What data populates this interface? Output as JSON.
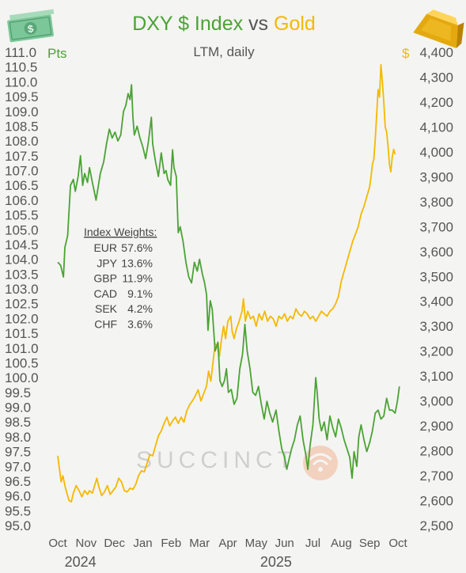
{
  "colors": {
    "dxy": "#4aa334",
    "gold": "#f5b800",
    "title_dark": "#555555",
    "tick_text": "#555555",
    "background": "#f4f4f2"
  },
  "title": {
    "part1": "DXY $ Index",
    "part2": " vs ",
    "part3": "Gold"
  },
  "subtitle": "LTM, daily",
  "left_unit": "Pts",
  "right_unit": "$",
  "watermark": "SUCCINCT",
  "icons": {
    "left": "dollar-bill-icon",
    "right": "gold-bar-icon",
    "watermark": "succinct-logo-icon"
  },
  "weights": {
    "title": "Index Weights:",
    "rows": [
      {
        "currency": "EUR",
        "weight": "57.6%"
      },
      {
        "currency": "JPY",
        "weight": "13.6%"
      },
      {
        "currency": "GBP",
        "weight": "11.9%"
      },
      {
        "currency": "CAD",
        "weight": "9.1%"
      },
      {
        "currency": "SEK",
        "weight": "4.2%"
      },
      {
        "currency": "CHF",
        "weight": "3.6%"
      }
    ]
  },
  "chart_data": {
    "type": "line",
    "x_labels": [
      "Oct",
      "Nov",
      "Dec",
      "Jan",
      "Feb",
      "Mar",
      "Apr",
      "May",
      "Jun",
      "Jul",
      "Aug",
      "Sep",
      "Oct"
    ],
    "year_labels": [
      {
        "label": "2024",
        "month_index": 0.8
      },
      {
        "label": "2025",
        "month_index": 7.7
      }
    ],
    "left_axis": {
      "ylim": [
        95.0,
        111.0
      ],
      "ticks": [
        "111.0",
        "110.5",
        "110.0",
        "109.5",
        "109.0",
        "108.5",
        "108.0",
        "107.5",
        "107.0",
        "106.5",
        "106.0",
        "105.5",
        "105.0",
        "104.5",
        "104.0",
        "103.5",
        "103.0",
        "102.5",
        "102.0",
        "101.5",
        "101.0",
        "100.5",
        "100.0",
        "99.5",
        "99.0",
        "98.5",
        "98.0",
        "97.5",
        "97.0",
        "96.5",
        "96.0",
        "95.5",
        "95.0"
      ]
    },
    "right_axis": {
      "ylim": [
        2500,
        4400
      ],
      "ticks": [
        "4,400",
        "4,300",
        "4,200",
        "4,100",
        "4,000",
        "3,900",
        "3,800",
        "3,700",
        "3,600",
        "3,500",
        "3,400",
        "3,300",
        "3,200",
        "3,100",
        "3,000",
        "2,900",
        "2,800",
        "2,700",
        "2,600",
        "2,500"
      ]
    },
    "series": [
      {
        "name": "DXY $ Index",
        "axis": "left",
        "points": [
          [
            0.0,
            103.9
          ],
          [
            0.1,
            103.8
          ],
          [
            0.2,
            103.4
          ],
          [
            0.25,
            104.4
          ],
          [
            0.35,
            104.8
          ],
          [
            0.45,
            106.5
          ],
          [
            0.55,
            106.7
          ],
          [
            0.62,
            106.3
          ],
          [
            0.72,
            106.8
          ],
          [
            0.8,
            107.5
          ],
          [
            0.88,
            106.5
          ],
          [
            0.95,
            106.9
          ],
          [
            1.05,
            106.6
          ],
          [
            1.12,
            107.1
          ],
          [
            1.2,
            106.7
          ],
          [
            1.35,
            106.0
          ],
          [
            1.5,
            106.9
          ],
          [
            1.62,
            107.3
          ],
          [
            1.72,
            107.9
          ],
          [
            1.82,
            108.4
          ],
          [
            1.92,
            108.1
          ],
          [
            2.02,
            108.3
          ],
          [
            2.12,
            108.0
          ],
          [
            2.22,
            108.2
          ],
          [
            2.32,
            109.0
          ],
          [
            2.4,
            109.2
          ],
          [
            2.48,
            109.6
          ],
          [
            2.55,
            109.4
          ],
          [
            2.6,
            109.9
          ],
          [
            2.65,
            108.8
          ],
          [
            2.7,
            108.2
          ],
          [
            2.8,
            108.5
          ],
          [
            2.9,
            108.1
          ],
          [
            3.0,
            107.8
          ],
          [
            3.1,
            107.4
          ],
          [
            3.2,
            108.0
          ],
          [
            3.3,
            108.8
          ],
          [
            3.35,
            107.9
          ],
          [
            3.45,
            107.3
          ],
          [
            3.55,
            106.8
          ],
          [
            3.65,
            107.6
          ],
          [
            3.75,
            106.9
          ],
          [
            3.82,
            107.0
          ],
          [
            3.88,
            106.7
          ],
          [
            3.98,
            106.5
          ],
          [
            4.05,
            107.7
          ],
          [
            4.1,
            107.1
          ],
          [
            4.18,
            106.8
          ],
          [
            4.25,
            104.9
          ],
          [
            4.32,
            105.1
          ],
          [
            4.42,
            104.6
          ],
          [
            4.52,
            103.9
          ],
          [
            4.62,
            103.4
          ],
          [
            4.72,
            103.2
          ],
          [
            4.82,
            103.9
          ],
          [
            4.92,
            103.6
          ],
          [
            5.0,
            104.0
          ],
          [
            5.1,
            103.5
          ],
          [
            5.18,
            103.2
          ],
          [
            5.25,
            102.8
          ],
          [
            5.3,
            101.6
          ],
          [
            5.38,
            102.6
          ],
          [
            5.45,
            102.3
          ],
          [
            5.55,
            100.9
          ],
          [
            5.65,
            101.2
          ],
          [
            5.72,
            99.9
          ],
          [
            5.8,
            99.7
          ],
          [
            5.88,
            99.9
          ],
          [
            5.95,
            100.3
          ],
          [
            6.02,
            99.5
          ],
          [
            6.12,
            99.6
          ],
          [
            6.22,
            99.1
          ],
          [
            6.32,
            99.3
          ],
          [
            6.42,
            100.3
          ],
          [
            6.52,
            100.8
          ],
          [
            6.6,
            101.8
          ],
          [
            6.68,
            100.9
          ],
          [
            6.78,
            100.3
          ],
          [
            6.88,
            99.5
          ],
          [
            6.98,
            99.4
          ],
          [
            7.08,
            99.7
          ],
          [
            7.18,
            99.1
          ],
          [
            7.28,
            98.6
          ],
          [
            7.38,
            99.2
          ],
          [
            7.48,
            98.8
          ],
          [
            7.58,
            98.5
          ],
          [
            7.7,
            98.9
          ],
          [
            7.8,
            98.2
          ],
          [
            7.9,
            97.6
          ],
          [
            8.0,
            97.3
          ],
          [
            8.08,
            96.9
          ],
          [
            8.15,
            97.2
          ],
          [
            8.25,
            97.6
          ],
          [
            8.35,
            97.9
          ],
          [
            8.45,
            98.4
          ],
          [
            8.55,
            98.7
          ],
          [
            8.65,
            97.9
          ],
          [
            8.75,
            97.4
          ],
          [
            8.82,
            96.9
          ],
          [
            8.9,
            97.7
          ],
          [
            9.0,
            98.4
          ],
          [
            9.05,
            99.2
          ],
          [
            9.1,
            100.0
          ],
          [
            9.15,
            99.5
          ],
          [
            9.22,
            98.6
          ],
          [
            9.3,
            98.2
          ],
          [
            9.4,
            98.5
          ],
          [
            9.5,
            97.9
          ],
          [
            9.6,
            98.7
          ],
          [
            9.7,
            98.3
          ],
          [
            9.8,
            98.0
          ],
          [
            9.9,
            98.6
          ],
          [
            10.0,
            98.3
          ],
          [
            10.1,
            97.9
          ],
          [
            10.2,
            97.6
          ],
          [
            10.3,
            97.3
          ],
          [
            10.38,
            96.6
          ],
          [
            10.45,
            97.5
          ],
          [
            10.55,
            97.0
          ],
          [
            10.62,
            98.0
          ],
          [
            10.7,
            98.4
          ],
          [
            10.8,
            97.9
          ],
          [
            10.9,
            97.5
          ],
          [
            11.0,
            97.8
          ],
          [
            11.1,
            98.2
          ],
          [
            11.2,
            98.8
          ],
          [
            11.3,
            98.9
          ],
          [
            11.4,
            98.6
          ],
          [
            11.5,
            98.7
          ],
          [
            11.6,
            99.3
          ],
          [
            11.7,
            98.9
          ],
          [
            11.8,
            98.9
          ],
          [
            11.9,
            98.8
          ],
          [
            11.98,
            99.2
          ],
          [
            12.05,
            99.7
          ]
        ]
      },
      {
        "name": "Gold",
        "axis": "right",
        "points": [
          [
            0.0,
            2780
          ],
          [
            0.05,
            2735
          ],
          [
            0.12,
            2675
          ],
          [
            0.18,
            2700
          ],
          [
            0.25,
            2660
          ],
          [
            0.32,
            2630
          ],
          [
            0.4,
            2600
          ],
          [
            0.48,
            2595
          ],
          [
            0.55,
            2630
          ],
          [
            0.65,
            2660
          ],
          [
            0.75,
            2640
          ],
          [
            0.85,
            2615
          ],
          [
            0.95,
            2640
          ],
          [
            1.05,
            2625
          ],
          [
            1.12,
            2640
          ],
          [
            1.22,
            2630
          ],
          [
            1.3,
            2660
          ],
          [
            1.38,
            2690
          ],
          [
            1.45,
            2655
          ],
          [
            1.55,
            2620
          ],
          [
            1.65,
            2635
          ],
          [
            1.75,
            2660
          ],
          [
            1.85,
            2625
          ],
          [
            1.95,
            2640
          ],
          [
            2.05,
            2655
          ],
          [
            2.15,
            2690
          ],
          [
            2.25,
            2675
          ],
          [
            2.35,
            2640
          ],
          [
            2.45,
            2635
          ],
          [
            2.55,
            2650
          ],
          [
            2.65,
            2645
          ],
          [
            2.75,
            2665
          ],
          [
            2.85,
            2700
          ],
          [
            2.95,
            2720
          ],
          [
            3.05,
            2715
          ],
          [
            3.15,
            2750
          ],
          [
            3.25,
            2785
          ],
          [
            3.35,
            2780
          ],
          [
            3.45,
            2820
          ],
          [
            3.55,
            2860
          ],
          [
            3.65,
            2880
          ],
          [
            3.75,
            2910
          ],
          [
            3.85,
            2935
          ],
          [
            3.95,
            2900
          ],
          [
            4.05,
            2920
          ],
          [
            4.15,
            2935
          ],
          [
            4.25,
            2910
          ],
          [
            4.35,
            2935
          ],
          [
            4.45,
            2915
          ],
          [
            4.55,
            2960
          ],
          [
            4.65,
            2985
          ],
          [
            4.75,
            3000
          ],
          [
            4.85,
            3020
          ],
          [
            4.95,
            3045
          ],
          [
            5.05,
            3000
          ],
          [
            5.15,
            3030
          ],
          [
            5.25,
            3060
          ],
          [
            5.32,
            3120
          ],
          [
            5.4,
            3080
          ],
          [
            5.48,
            3160
          ],
          [
            5.55,
            3230
          ],
          [
            5.62,
            3220
          ],
          [
            5.7,
            3180
          ],
          [
            5.78,
            3250
          ],
          [
            5.85,
            3300
          ],
          [
            5.92,
            3250
          ],
          [
            6.0,
            3320
          ],
          [
            6.1,
            3340
          ],
          [
            6.15,
            3280
          ],
          [
            6.22,
            3250
          ],
          [
            6.3,
            3290
          ],
          [
            6.4,
            3320
          ],
          [
            6.5,
            3360
          ],
          [
            6.55,
            3410
          ],
          [
            6.62,
            3320
          ],
          [
            6.7,
            3360
          ],
          [
            6.8,
            3330
          ],
          [
            6.9,
            3340
          ],
          [
            7.0,
            3300
          ],
          [
            7.1,
            3350
          ],
          [
            7.2,
            3325
          ],
          [
            7.3,
            3360
          ],
          [
            7.4,
            3320
          ],
          [
            7.5,
            3340
          ],
          [
            7.6,
            3330
          ],
          [
            7.7,
            3300
          ],
          [
            7.8,
            3340
          ],
          [
            7.9,
            3330
          ],
          [
            8.0,
            3350
          ],
          [
            8.1,
            3320
          ],
          [
            8.2,
            3340
          ],
          [
            8.3,
            3330
          ],
          [
            8.4,
            3370
          ],
          [
            8.5,
            3350
          ],
          [
            8.6,
            3340
          ],
          [
            8.7,
            3360
          ],
          [
            8.8,
            3350
          ],
          [
            8.9,
            3330
          ],
          [
            9.0,
            3340
          ],
          [
            9.1,
            3320
          ],
          [
            9.2,
            3340
          ],
          [
            9.3,
            3360
          ],
          [
            9.4,
            3350
          ],
          [
            9.5,
            3340
          ],
          [
            9.6,
            3360
          ],
          [
            9.7,
            3370
          ],
          [
            9.8,
            3390
          ],
          [
            9.9,
            3420
          ],
          [
            10.0,
            3480
          ],
          [
            10.1,
            3520
          ],
          [
            10.2,
            3560
          ],
          [
            10.3,
            3600
          ],
          [
            10.4,
            3640
          ],
          [
            10.5,
            3670
          ],
          [
            10.6,
            3700
          ],
          [
            10.7,
            3750
          ],
          [
            10.8,
            3780
          ],
          [
            10.9,
            3820
          ],
          [
            11.0,
            3860
          ],
          [
            11.05,
            3900
          ],
          [
            11.1,
            3950
          ],
          [
            11.15,
            3970
          ],
          [
            11.2,
            4050
          ],
          [
            11.25,
            4150
          ],
          [
            11.3,
            4250
          ],
          [
            11.35,
            4220
          ],
          [
            11.4,
            4350
          ],
          [
            11.45,
            4280
          ],
          [
            11.5,
            4200
          ],
          [
            11.55,
            4100
          ],
          [
            11.6,
            4080
          ],
          [
            11.65,
            4020
          ],
          [
            11.7,
            3950
          ],
          [
            11.75,
            3920
          ],
          [
            11.8,
            3980
          ],
          [
            11.85,
            4010
          ],
          [
            11.9,
            3990
          ]
        ]
      }
    ],
    "grid": false,
    "legend": "none (series named in title)"
  }
}
